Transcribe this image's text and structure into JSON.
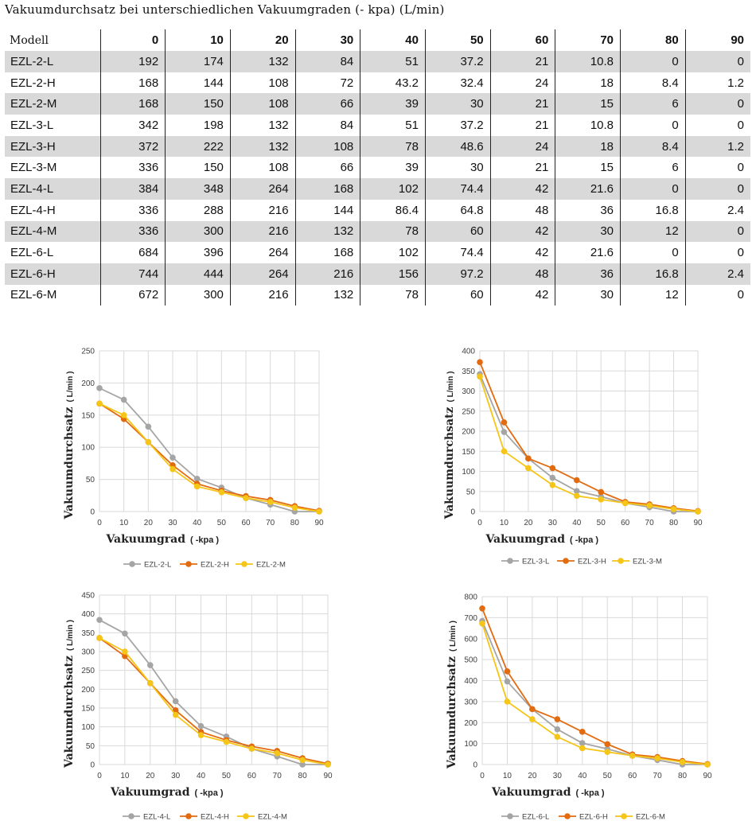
{
  "page": {
    "title": "Vakuumdurchsatz bei unterschiedlichen Vakuumgraden (- kpa) (L/min)"
  },
  "table": {
    "columns": [
      "Modell",
      "0",
      "10",
      "20",
      "30",
      "40",
      "50",
      "60",
      "70",
      "80",
      "90"
    ],
    "rows": [
      [
        "EZL-2-L",
        "192",
        "174",
        "132",
        "84",
        "51",
        "37.2",
        "21",
        "10.8",
        "0",
        "0"
      ],
      [
        "EZL-2-H",
        "168",
        "144",
        "108",
        "72",
        "43.2",
        "32.4",
        "24",
        "18",
        "8.4",
        "1.2"
      ],
      [
        "EZL-2-M",
        "168",
        "150",
        "108",
        "66",
        "39",
        "30",
        "21",
        "15",
        "6",
        "0"
      ],
      [
        "EZL-3-L",
        "342",
        "198",
        "132",
        "84",
        "51",
        "37.2",
        "21",
        "10.8",
        "0",
        "0"
      ],
      [
        "EZL-3-H",
        "372",
        "222",
        "132",
        "108",
        "78",
        "48.6",
        "24",
        "18",
        "8.4",
        "1.2"
      ],
      [
        "EZL-3-M",
        "336",
        "150",
        "108",
        "66",
        "39",
        "30",
        "21",
        "15",
        "6",
        "0"
      ],
      [
        "EZL-4-L",
        "384",
        "348",
        "264",
        "168",
        "102",
        "74.4",
        "42",
        "21.6",
        "0",
        "0"
      ],
      [
        "EZL-4-H",
        "336",
        "288",
        "216",
        "144",
        "86.4",
        "64.8",
        "48",
        "36",
        "16.8",
        "2.4"
      ],
      [
        "EZL-4-M",
        "336",
        "300",
        "216",
        "132",
        "78",
        "60",
        "42",
        "30",
        "12",
        "0"
      ],
      [
        "EZL-6-L",
        "684",
        "396",
        "264",
        "168",
        "102",
        "74.4",
        "42",
        "21.6",
        "0",
        "0"
      ],
      [
        "EZL-6-H",
        "744",
        "444",
        "264",
        "216",
        "156",
        "97.2",
        "48",
        "36",
        "16.8",
        "2.4"
      ],
      [
        "EZL-6-M",
        "672",
        "300",
        "216",
        "132",
        "78",
        "60",
        "42",
        "30",
        "12",
        "0"
      ]
    ]
  },
  "colors": {
    "L": "#a5a5a5",
    "H": "#e26b10",
    "M": "#f5c518",
    "grid": "#d9d9d9",
    "row_shade": "#d9d9d9"
  },
  "chart_data": [
    {
      "type": "line",
      "x": [
        0,
        10,
        20,
        30,
        40,
        50,
        60,
        70,
        80,
        90
      ],
      "xlim": [
        0,
        90
      ],
      "ylim": [
        0,
        250
      ],
      "yticks": [
        0,
        50,
        100,
        150,
        200,
        250
      ],
      "xlabel": "Vakuumgrad",
      "xlabel_unit": "( -kpa )",
      "ylabel": "Vakuumdurchsatz",
      "ylabel_unit": "( L/min )",
      "grid": true,
      "legend": "bottom",
      "series": [
        {
          "name": "EZL-2-L",
          "color": "#a5a5a5",
          "values": [
            192,
            174,
            132,
            84,
            51,
            37.2,
            21,
            10.8,
            0,
            0
          ]
        },
        {
          "name": "EZL-2-H",
          "color": "#e26b10",
          "values": [
            168,
            144,
            108,
            72,
            43.2,
            32.4,
            24,
            18,
            8.4,
            1.2
          ]
        },
        {
          "name": "EZL-2-M",
          "color": "#f5c518",
          "values": [
            168,
            150,
            108,
            66,
            39,
            30,
            21,
            15,
            6,
            0
          ]
        }
      ]
    },
    {
      "type": "line",
      "x": [
        0,
        10,
        20,
        30,
        40,
        50,
        60,
        70,
        80,
        90
      ],
      "xlim": [
        0,
        90
      ],
      "ylim": [
        0,
        400
      ],
      "yticks": [
        0,
        50,
        100,
        150,
        200,
        250,
        300,
        350,
        400
      ],
      "xlabel": "Vakuumgrad",
      "xlabel_unit": "( -kpa )",
      "ylabel": "Vakuumdurchsatz",
      "ylabel_unit": "( L/min )",
      "grid": true,
      "legend": "bottom",
      "series": [
        {
          "name": "EZL-3-L",
          "color": "#a5a5a5",
          "values": [
            342,
            198,
            132,
            84,
            51,
            37.2,
            21,
            10.8,
            0,
            0
          ]
        },
        {
          "name": "EZL-3-H",
          "color": "#e26b10",
          "values": [
            372,
            222,
            132,
            108,
            78,
            48.6,
            24,
            18,
            8.4,
            1.2
          ]
        },
        {
          "name": "EZL-3-M",
          "color": "#f5c518",
          "values": [
            336,
            150,
            108,
            66,
            39,
            30,
            21,
            15,
            6,
            0
          ]
        }
      ]
    },
    {
      "type": "line",
      "x": [
        0,
        10,
        20,
        30,
        40,
        50,
        60,
        70,
        80,
        90
      ],
      "xlim": [
        0,
        90
      ],
      "ylim": [
        0,
        450
      ],
      "yticks": [
        0,
        50,
        100,
        150,
        200,
        250,
        300,
        350,
        400,
        450
      ],
      "xlabel": "Vakuumgrad",
      "xlabel_unit": "( -kpa )",
      "ylabel": "Vakuumdurchsatz",
      "ylabel_unit": "( L/min )",
      "grid": true,
      "legend": "bottom",
      "series": [
        {
          "name": "EZL-4-L",
          "color": "#a5a5a5",
          "values": [
            384,
            348,
            264,
            168,
            102,
            74.4,
            42,
            21.6,
            0,
            0
          ]
        },
        {
          "name": "EZL-4-H",
          "color": "#e26b10",
          "values": [
            336,
            288,
            216,
            144,
            86.4,
            64.8,
            48,
            36,
            16.8,
            2.4
          ]
        },
        {
          "name": "EZL-4-M",
          "color": "#f5c518",
          "values": [
            336,
            300,
            216,
            132,
            78,
            60,
            42,
            30,
            12,
            0
          ]
        }
      ]
    },
    {
      "type": "line",
      "x": [
        0,
        10,
        20,
        30,
        40,
        50,
        60,
        70,
        80,
        90
      ],
      "xlim": [
        0,
        90
      ],
      "ylim": [
        0,
        800
      ],
      "yticks": [
        0,
        100,
        200,
        300,
        400,
        500,
        600,
        700,
        800
      ],
      "xlabel": "Vakuumgrad",
      "xlabel_unit": "( -kpa )",
      "ylabel": "Vakuumdurchsatz",
      "ylabel_unit": "( L/min )",
      "grid": true,
      "legend": "bottom",
      "series": [
        {
          "name": "EZL-6-L",
          "color": "#a5a5a5",
          "values": [
            684,
            396,
            264,
            168,
            102,
            74.4,
            42,
            21.6,
            0,
            0
          ]
        },
        {
          "name": "EZL-6-H",
          "color": "#e26b10",
          "values": [
            744,
            444,
            264,
            216,
            156,
            97.2,
            48,
            36,
            16.8,
            2.4
          ]
        },
        {
          "name": "EZL-6-M",
          "color": "#f5c518",
          "values": [
            672,
            300,
            216,
            132,
            78,
            60,
            42,
            30,
            12,
            0
          ]
        }
      ]
    }
  ]
}
